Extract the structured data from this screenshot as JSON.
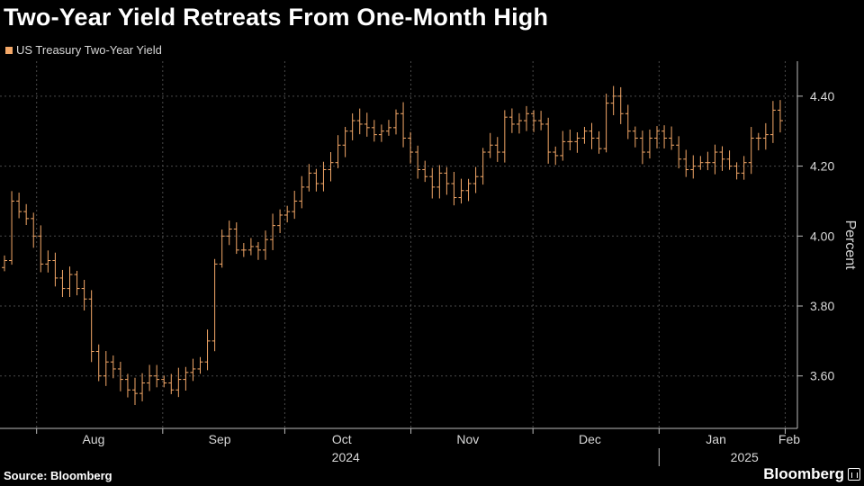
{
  "title": "Two-Year Yield Retreats From One-Month High",
  "legend": {
    "label": "US Treasury Two-Year Yield",
    "color": "#f4a868"
  },
  "source": "Source: Bloomberg",
  "brand": "Bloomberg",
  "chart_data": {
    "type": "ohlc",
    "title": "Two-Year Yield Retreats From One-Month High",
    "series_name": "US Treasury Two-Year Yield",
    "ylabel": "Percent",
    "ylim": [
      3.45,
      4.5
    ],
    "yticks": [
      3.6,
      3.8,
      4.0,
      4.2,
      4.4
    ],
    "ytick_labels": [
      "3.60",
      "3.80",
      "4.00",
      "4.20",
      "4.40"
    ],
    "grid": true,
    "x_start": "2024-07-23",
    "x_end": "2025-02-04",
    "month_gridlines": [
      "2024-08-01",
      "2024-09-01",
      "2024-10-01",
      "2024-11-01",
      "2024-12-01",
      "2025-01-01",
      "2025-02-01"
    ],
    "month_labels": [
      {
        "label": "Aug",
        "date": "2024-08-15"
      },
      {
        "label": "Sep",
        "date": "2024-09-15"
      },
      {
        "label": "Oct",
        "date": "2024-10-15"
      },
      {
        "label": "Nov",
        "date": "2024-11-15"
      },
      {
        "label": "Dec",
        "date": "2024-12-15"
      },
      {
        "label": "Jan",
        "date": "2025-01-15"
      },
      {
        "label": "Feb",
        "date": "2025-02-02"
      }
    ],
    "year_labels": [
      {
        "label": "2024",
        "date": "2024-10-16"
      },
      {
        "label": "2025",
        "date": "2025-01-22"
      }
    ],
    "year_divider": "2025-01-01",
    "closes": [
      3.93,
      4.1,
      4.07,
      4.05,
      4.0,
      3.92,
      3.93,
      3.88,
      3.85,
      3.89,
      3.85,
      3.82,
      3.67,
      3.6,
      3.64,
      3.62,
      3.59,
      3.56,
      3.55,
      3.58,
      3.6,
      3.59,
      3.58,
      3.56,
      3.59,
      3.61,
      3.62,
      3.64,
      3.7,
      3.92,
      4.0,
      4.02,
      3.96,
      3.96,
      3.97,
      3.96,
      3.99,
      4.03,
      4.06,
      4.07,
      4.1,
      4.14,
      4.18,
      4.15,
      4.19,
      4.21,
      4.26,
      4.3,
      4.33,
      4.32,
      4.31,
      4.29,
      4.3,
      4.31,
      4.35,
      4.28,
      4.24,
      4.19,
      4.17,
      4.14,
      4.18,
      4.15,
      4.11,
      4.13,
      4.15,
      4.17,
      4.24,
      4.26,
      4.24,
      4.34,
      4.32,
      4.33,
      4.35,
      4.33,
      4.32,
      4.24,
      4.23,
      4.27,
      4.27,
      4.28,
      4.3,
      4.28,
      4.25,
      4.38,
      4.4,
      4.35,
      4.3,
      4.28,
      4.24,
      4.28,
      4.3,
      4.28,
      4.26,
      4.22,
      4.19,
      4.2,
      4.21,
      4.21,
      4.24,
      4.22,
      4.2,
      4.18,
      4.21,
      4.28,
      4.28,
      4.29,
      4.36,
      4.33
    ]
  }
}
